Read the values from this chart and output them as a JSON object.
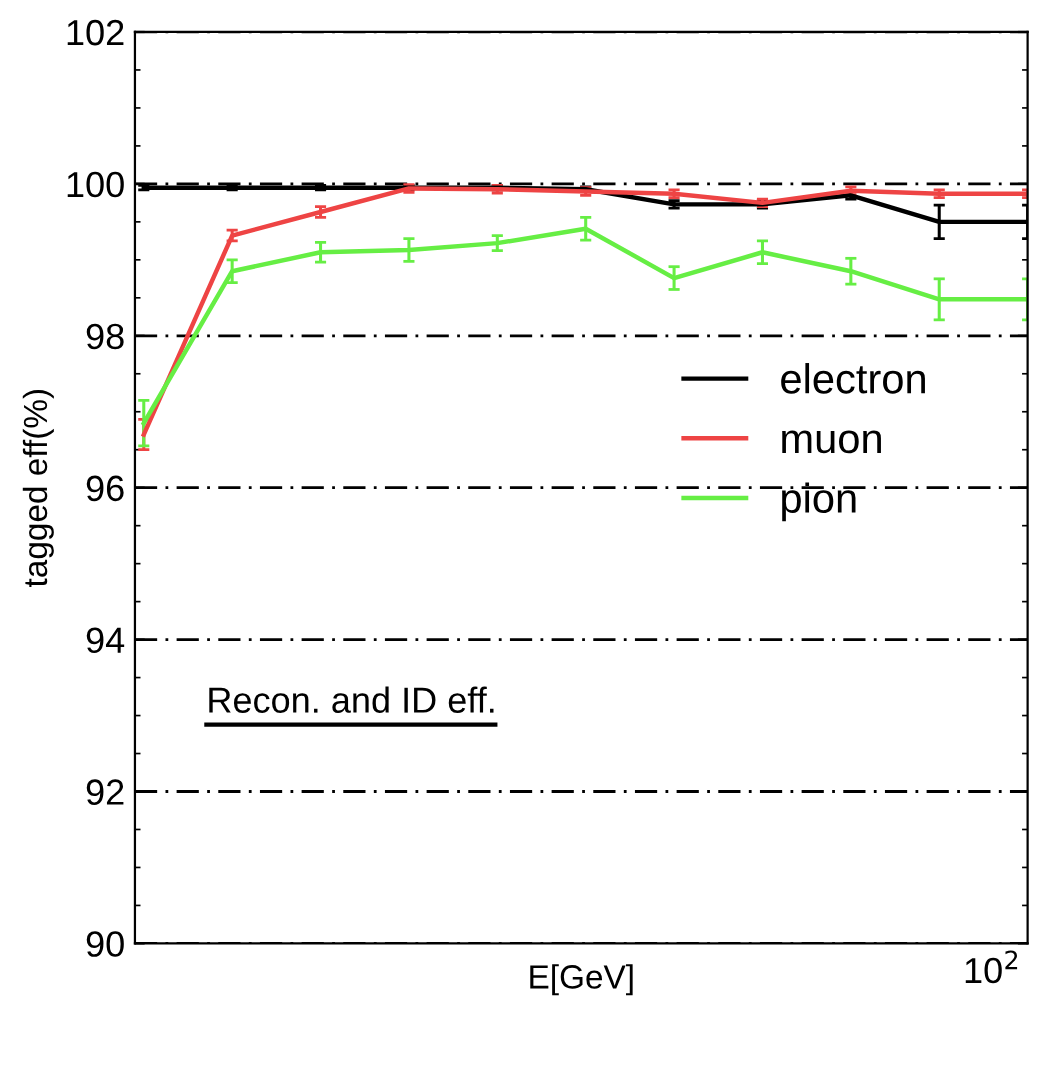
{
  "chart_data": {
    "type": "line",
    "xlabel": "E[GeV]",
    "ylabel": "tagged eff(%)",
    "categories": [
      null,
      null,
      null,
      null,
      null,
      null,
      null,
      null,
      null,
      null,
      null
    ],
    "series": [
      {
        "name": "electron",
        "color": "#000000",
        "values": [
          99.95,
          99.95,
          99.95,
          99.95,
          99.95,
          99.93,
          99.73,
          99.73,
          99.85,
          99.5,
          99.5
        ],
        "errors": [
          0.03,
          0.03,
          0.03,
          0.03,
          0.03,
          0.03,
          0.05,
          0.05,
          0.05,
          0.22,
          0.22
        ]
      },
      {
        "name": "muon",
        "color": "#ee4444",
        "values": [
          96.7,
          99.32,
          99.63,
          99.94,
          99.93,
          99.9,
          99.87,
          99.75,
          99.91,
          99.87,
          99.87
        ],
        "errors": [
          0.2,
          0.07,
          0.07,
          0.05,
          0.05,
          0.05,
          0.05,
          0.05,
          0.05,
          0.05,
          0.05
        ]
      },
      {
        "name": "pion",
        "color": "#66ee44",
        "values": [
          96.85,
          98.85,
          99.1,
          99.13,
          99.22,
          99.41,
          98.76,
          99.1,
          98.85,
          98.48,
          98.48
        ],
        "errors": [
          0.3,
          0.15,
          0.13,
          0.15,
          0.1,
          0.15,
          0.15,
          0.15,
          0.17,
          0.27,
          0.27
        ]
      }
    ],
    "ylim": [
      90,
      102
    ],
    "yticks": [
      90,
      92,
      94,
      96,
      98,
      100,
      102
    ],
    "grid": "y",
    "legend": "center right",
    "marker": "none",
    "line_style": "solid",
    "annotations": [
      "Recon. and ID eff.",
      "10$^{2}$"
    ]
  }
}
